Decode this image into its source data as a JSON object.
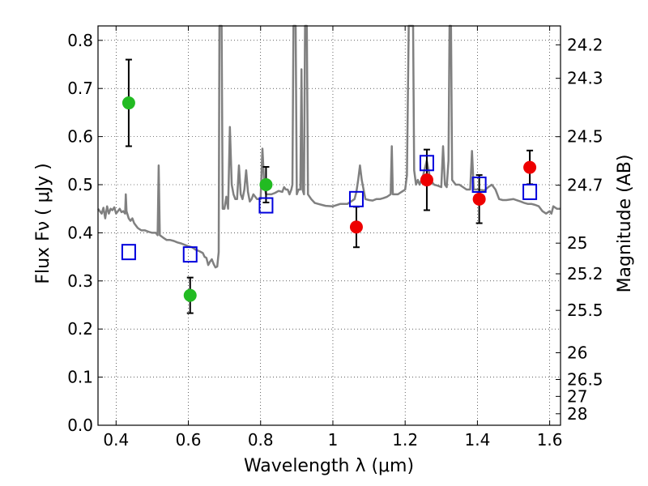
{
  "chart_data": {
    "type": "scatter",
    "xlabel": "Wavelength  λ (μm)",
    "ylabel": "Flux  Fν  ( μJy )",
    "y2label": "Magnitude (AB)",
    "xlim": [
      0.35,
      1.63
    ],
    "ylim": [
      0.0,
      0.83
    ],
    "grid": true,
    "x_ticks": [
      0.4,
      0.6,
      0.8,
      1.0,
      1.2,
      1.4,
      1.6
    ],
    "x_tick_labels": [
      "0.4",
      "0.6",
      "0.8",
      "1",
      "1.2",
      "1.4",
      "1.6"
    ],
    "y_ticks": [
      0.0,
      0.1,
      0.2,
      0.3,
      0.4,
      0.5,
      0.6,
      0.7,
      0.8
    ],
    "y_tick_labels": [
      "0.0",
      "0.1",
      "0.2",
      "0.3",
      "0.4",
      "0.5",
      "0.6",
      "0.7",
      "0.8"
    ],
    "mag_ticks": [
      {
        "label": "24.2",
        "flux": 0.7907
      },
      {
        "label": "24.3",
        "flux": 0.7211
      },
      {
        "label": "24.5",
        "flux": 0.5998
      },
      {
        "label": "24.7",
        "flux": 0.4989
      },
      {
        "label": "25",
        "flux": 0.3785
      },
      {
        "label": "25.2",
        "flux": 0.3148
      },
      {
        "label": "25.5",
        "flux": 0.2388
      },
      {
        "label": "26",
        "flux": 0.1507
      },
      {
        "label": "26.5",
        "flux": 0.0951
      },
      {
        "label": "27",
        "flux": 0.06
      },
      {
        "label": "28",
        "flux": 0.0239
      }
    ],
    "series": [
      {
        "name": "model spectrum",
        "kind": "line",
        "color": "#808080",
        "points": [
          [
            0.35,
            0.45
          ],
          [
            0.36,
            0.44
          ],
          [
            0.365,
            0.452
          ],
          [
            0.37,
            0.43
          ],
          [
            0.375,
            0.455
          ],
          [
            0.38,
            0.44
          ],
          [
            0.385,
            0.45
          ],
          [
            0.39,
            0.447
          ],
          [
            0.395,
            0.453
          ],
          [
            0.4,
            0.44
          ],
          [
            0.41,
            0.45
          ],
          [
            0.415,
            0.443
          ],
          [
            0.42,
            0.445
          ],
          [
            0.425,
            0.44
          ],
          [
            0.427,
            0.48
          ],
          [
            0.429,
            0.445
          ],
          [
            0.435,
            0.43
          ],
          [
            0.44,
            0.425
          ],
          [
            0.445,
            0.43
          ],
          [
            0.45,
            0.42
          ],
          [
            0.455,
            0.415
          ],
          [
            0.46,
            0.41
          ],
          [
            0.47,
            0.405
          ],
          [
            0.48,
            0.405
          ],
          [
            0.49,
            0.402
          ],
          [
            0.5,
            0.4
          ],
          [
            0.51,
            0.4
          ],
          [
            0.515,
            0.395
          ],
          [
            0.518,
            0.54
          ],
          [
            0.521,
            0.395
          ],
          [
            0.53,
            0.39
          ],
          [
            0.54,
            0.385
          ],
          [
            0.55,
            0.385
          ],
          [
            0.56,
            0.383
          ],
          [
            0.57,
            0.38
          ],
          [
            0.58,
            0.378
          ],
          [
            0.59,
            0.375
          ],
          [
            0.6,
            0.372
          ],
          [
            0.61,
            0.37
          ],
          [
            0.62,
            0.365
          ],
          [
            0.63,
            0.362
          ],
          [
            0.64,
            0.358
          ],
          [
            0.645,
            0.35
          ],
          [
            0.65,
            0.348
          ],
          [
            0.655,
            0.333
          ],
          [
            0.66,
            0.34
          ],
          [
            0.665,
            0.345
          ],
          [
            0.67,
            0.335
          ],
          [
            0.675,
            0.328
          ],
          [
            0.68,
            0.33
          ],
          [
            0.684,
            0.36
          ],
          [
            0.686,
            0.83
          ],
          [
            0.692,
            0.83
          ],
          [
            0.695,
            0.45
          ],
          [
            0.7,
            0.45
          ],
          [
            0.705,
            0.475
          ],
          [
            0.71,
            0.45
          ],
          [
            0.715,
            0.62
          ],
          [
            0.72,
            0.5
          ],
          [
            0.725,
            0.48
          ],
          [
            0.73,
            0.47
          ],
          [
            0.735,
            0.47
          ],
          [
            0.74,
            0.54
          ],
          [
            0.745,
            0.48
          ],
          [
            0.75,
            0.47
          ],
          [
            0.755,
            0.49
          ],
          [
            0.76,
            0.53
          ],
          [
            0.765,
            0.485
          ],
          [
            0.77,
            0.465
          ],
          [
            0.775,
            0.47
          ],
          [
            0.78,
            0.48
          ],
          [
            0.785,
            0.475
          ],
          [
            0.79,
            0.47
          ],
          [
            0.8,
            0.47
          ],
          [
            0.805,
            0.575
          ],
          [
            0.81,
            0.5
          ],
          [
            0.815,
            0.48
          ],
          [
            0.82,
            0.48
          ],
          [
            0.83,
            0.48
          ],
          [
            0.84,
            0.483
          ],
          [
            0.85,
            0.487
          ],
          [
            0.86,
            0.485
          ],
          [
            0.865,
            0.495
          ],
          [
            0.87,
            0.49
          ],
          [
            0.875,
            0.49
          ],
          [
            0.88,
            0.48
          ],
          [
            0.885,
            0.49
          ],
          [
            0.888,
            0.5
          ],
          [
            0.891,
            0.83
          ],
          [
            0.897,
            0.83
          ],
          [
            0.9,
            0.48
          ],
          [
            0.905,
            0.49
          ],
          [
            0.91,
            0.49
          ],
          [
            0.913,
            0.74
          ],
          [
            0.916,
            0.49
          ],
          [
            0.92,
            0.48
          ],
          [
            0.923,
            0.83
          ],
          [
            0.928,
            0.83
          ],
          [
            0.931,
            0.48
          ],
          [
            0.94,
            0.47
          ],
          [
            0.95,
            0.462
          ],
          [
            0.96,
            0.46
          ],
          [
            0.97,
            0.458
          ],
          [
            0.98,
            0.456
          ],
          [
            1.0,
            0.455
          ],
          [
            1.02,
            0.46
          ],
          [
            1.04,
            0.46
          ],
          [
            1.05,
            0.465
          ],
          [
            1.06,
            0.47
          ],
          [
            1.065,
            0.485
          ],
          [
            1.07,
            0.51
          ],
          [
            1.075,
            0.54
          ],
          [
            1.08,
            0.51
          ],
          [
            1.09,
            0.47
          ],
          [
            1.1,
            0.468
          ],
          [
            1.11,
            0.467
          ],
          [
            1.12,
            0.47
          ],
          [
            1.13,
            0.47
          ],
          [
            1.14,
            0.472
          ],
          [
            1.15,
            0.475
          ],
          [
            1.16,
            0.48
          ],
          [
            1.163,
            0.58
          ],
          [
            1.166,
            0.48
          ],
          [
            1.17,
            0.48
          ],
          [
            1.18,
            0.48
          ],
          [
            1.19,
            0.485
          ],
          [
            1.2,
            0.49
          ],
          [
            1.205,
            0.52
          ],
          [
            1.21,
            0.83
          ],
          [
            1.222,
            0.83
          ],
          [
            1.225,
            0.53
          ],
          [
            1.23,
            0.5
          ],
          [
            1.235,
            0.51
          ],
          [
            1.24,
            0.5
          ],
          [
            1.25,
            0.52
          ],
          [
            1.26,
            0.55
          ],
          [
            1.27,
            0.51
          ],
          [
            1.28,
            0.5
          ],
          [
            1.29,
            0.498
          ],
          [
            1.3,
            0.495
          ],
          [
            1.305,
            0.58
          ],
          [
            1.31,
            0.5
          ],
          [
            1.315,
            0.495
          ],
          [
            1.32,
            0.55
          ],
          [
            1.323,
            0.83
          ],
          [
            1.327,
            0.83
          ],
          [
            1.33,
            0.51
          ],
          [
            1.34,
            0.5
          ],
          [
            1.35,
            0.5
          ],
          [
            1.36,
            0.495
          ],
          [
            1.37,
            0.49
          ],
          [
            1.38,
            0.49
          ],
          [
            1.385,
            0.57
          ],
          [
            1.39,
            0.49
          ],
          [
            1.4,
            0.49
          ],
          [
            1.42,
            0.488
          ],
          [
            1.43,
            0.495
          ],
          [
            1.44,
            0.5
          ],
          [
            1.45,
            0.49
          ],
          [
            1.46,
            0.47
          ],
          [
            1.47,
            0.468
          ],
          [
            1.48,
            0.468
          ],
          [
            1.5,
            0.47
          ],
          [
            1.52,
            0.465
          ],
          [
            1.53,
            0.462
          ],
          [
            1.54,
            0.46
          ],
          [
            1.55,
            0.46
          ],
          [
            1.56,
            0.458
          ],
          [
            1.57,
            0.455
          ],
          [
            1.58,
            0.445
          ],
          [
            1.59,
            0.44
          ],
          [
            1.6,
            0.445
          ],
          [
            1.605,
            0.44
          ],
          [
            1.61,
            0.455
          ],
          [
            1.62,
            0.45
          ],
          [
            1.63,
            0.45
          ]
        ]
      },
      {
        "name": "observed (green)",
        "kind": "points",
        "color": "#22bb22",
        "points": [
          {
            "x": 0.435,
            "y": 0.67,
            "err": 0.09
          },
          {
            "x": 0.605,
            "y": 0.27,
            "err": 0.037
          },
          {
            "x": 0.815,
            "y": 0.5,
            "err": 0.037
          }
        ]
      },
      {
        "name": "observed (red)",
        "kind": "points",
        "color": "#ee0000",
        "points": [
          {
            "x": 1.065,
            "y": 0.412,
            "err": 0.042
          },
          {
            "x": 1.26,
            "y": 0.51,
            "err": 0.063
          },
          {
            "x": 1.405,
            "y": 0.47,
            "err": 0.05
          },
          {
            "x": 1.545,
            "y": 0.536,
            "err": 0.035
          }
        ]
      },
      {
        "name": "model photometry",
        "kind": "squares",
        "color": "#0000dd",
        "points": [
          {
            "x": 0.435,
            "y": 0.36
          },
          {
            "x": 0.605,
            "y": 0.355
          },
          {
            "x": 0.815,
            "y": 0.457
          },
          {
            "x": 1.065,
            "y": 0.47
          },
          {
            "x": 1.26,
            "y": 0.545
          },
          {
            "x": 1.405,
            "y": 0.5
          },
          {
            "x": 1.545,
            "y": 0.485
          }
        ]
      }
    ]
  }
}
